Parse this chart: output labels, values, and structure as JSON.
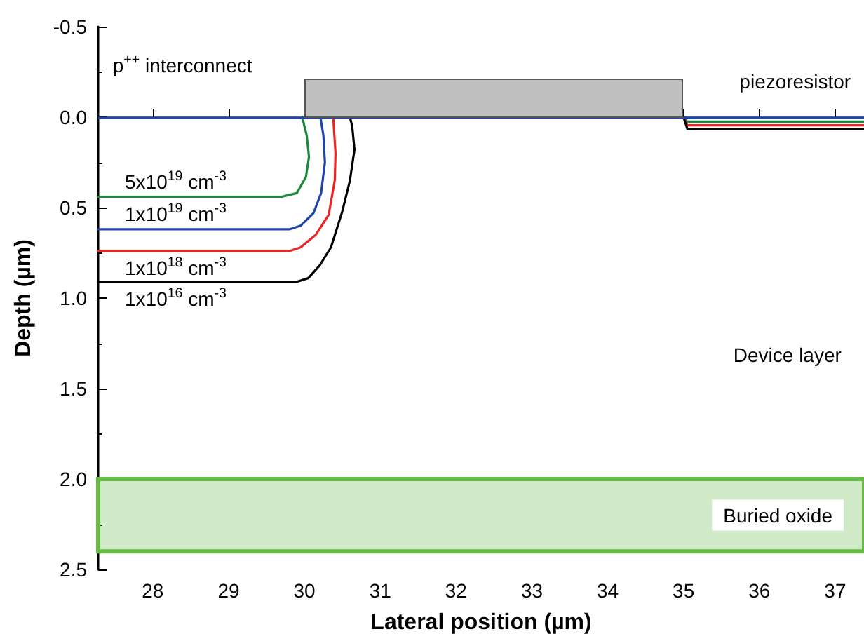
{
  "chart_data": {
    "type": "line",
    "xlabel": "Lateral position (µm)",
    "ylabel": "Depth (µm)",
    "xlim": [
      27.28,
      37.38
    ],
    "xticks": [
      28,
      29,
      30,
      31,
      32,
      33,
      34,
      35,
      36,
      37
    ],
    "ylim": [
      2.5,
      -0.5
    ],
    "yticks": [
      -0.5,
      {
        "value": 0,
        "label": "0.0"
      },
      0.5,
      {
        "value": 1,
        "label": "1.0"
      },
      1.5,
      {
        "value": 2,
        "label": "2.0"
      },
      2.5
    ],
    "grid": false,
    "legend": false,
    "marker": "none",
    "line_style": "solid",
    "series": [
      {
        "name": "5x10$^{19}$ cm$^{-3}$",
        "color": "#1a8a3a",
        "x": [
          27.28,
          29.7,
          29.9,
          30.02,
          30.06,
          30.03,
          29.97,
          null,
          35,
          35.05,
          37.38
        ],
        "values": [
          0.44,
          0.44,
          0.42,
          0.33,
          0.22,
          0.1,
          0,
          null,
          0,
          0.025,
          0.025
        ]
      },
      {
        "name": "1x10$^{19}$ cm$^{-3}$",
        "color": "#2244aa",
        "x": [
          27.28,
          29.8,
          29.95,
          30.12,
          30.22,
          30.27,
          30.25,
          30.21,
          null,
          35,
          35.05,
          37.38
        ],
        "values": [
          0.62,
          0.62,
          0.6,
          0.53,
          0.42,
          0.25,
          0.1,
          0,
          null,
          0,
          0.005,
          0.005
        ]
      },
      {
        "name": "1x10$^{18}$ cm$^{-3}$",
        "color": "#ee2222",
        "x": [
          27.28,
          29.8,
          29.95,
          30.15,
          30.32,
          30.4,
          30.41,
          30.38,
          null,
          35,
          35.05,
          37.38
        ],
        "values": [
          0.74,
          0.74,
          0.72,
          0.65,
          0.54,
          0.35,
          0.2,
          0,
          null,
          0,
          0.045,
          0.045
        ]
      },
      {
        "name": "1x10$^{16}$ cm$^{-3}$",
        "color": "#000000",
        "x": [
          27.28,
          29.9,
          30.05,
          30.2,
          30.35,
          30.5,
          30.6,
          30.66,
          30.63,
          30.6,
          null,
          35,
          35.05,
          37.38
        ],
        "values": [
          0.91,
          0.91,
          0.89,
          0.82,
          0.72,
          0.52,
          0.35,
          0.18,
          0.05,
          0,
          null,
          0,
          0.065,
          0.065
        ]
      }
    ],
    "ref_lines": [
      {
        "axis": "y",
        "value": 0,
        "color": "#2244aa"
      }
    ],
    "bands": [
      {
        "axis": "y",
        "from": 2.0,
        "to": 2.4,
        "label": "Buried oxide",
        "color": "#66bb44"
      }
    ],
    "annotations": [
      "p$^{++}$ interconnect",
      "piezoresistor",
      "Device layer"
    ]
  }
}
